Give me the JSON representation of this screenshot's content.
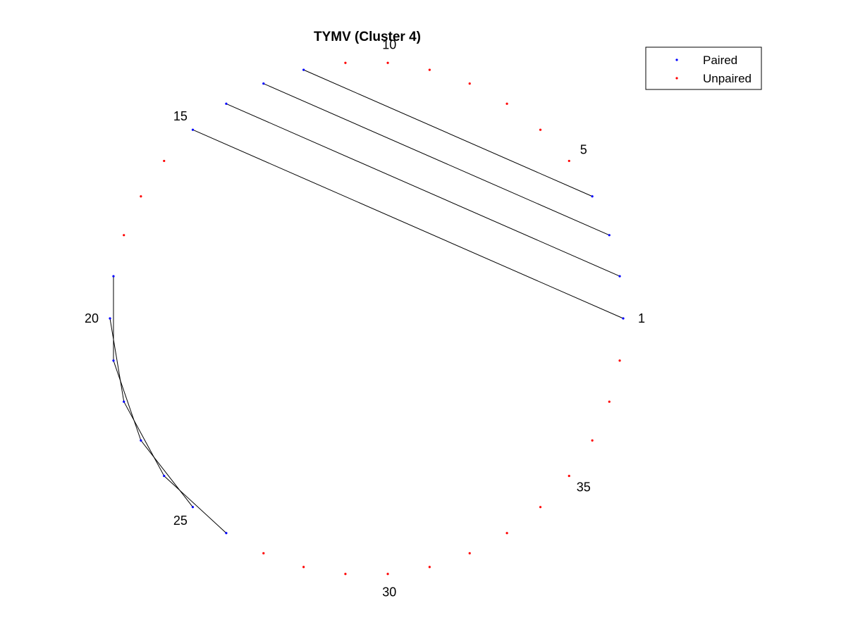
{
  "chart_data": {
    "type": "scatter",
    "title": "TYMV (Cluster 4)",
    "n_nodes": 38,
    "index_labels": [
      "1",
      "5",
      "10",
      "15",
      "20",
      "25",
      "30",
      "35"
    ],
    "pairs": [
      [
        1,
        15
      ],
      [
        2,
        14
      ],
      [
        3,
        13
      ],
      [
        4,
        12
      ],
      [
        19,
        21
      ],
      [
        20,
        22
      ],
      [
        21,
        23
      ],
      [
        22,
        24
      ],
      [
        23,
        25
      ],
      [
        24,
        26
      ]
    ],
    "series": [
      {
        "name": "Paired",
        "color": "#0000ff"
      },
      {
        "name": "Unpaired",
        "color": "#ff0000"
      }
    ],
    "legend_position": "top-right"
  }
}
